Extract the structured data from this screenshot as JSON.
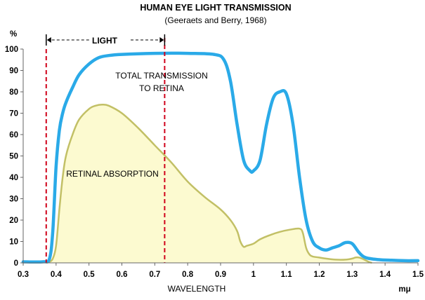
{
  "chart_data": {
    "type": "area",
    "title": "HUMAN EYE LIGHT TRANSMISSION",
    "subtitle": "(Geeraets and Berry, 1968)",
    "xlabel": "WAVELENGTH",
    "x_unit": "mμ",
    "ylabel": "%",
    "xlim": [
      0.3,
      1.5
    ],
    "ylim": [
      0,
      100
    ],
    "x_ticks": [
      "0.3",
      "0.4",
      "0.5",
      "0.6",
      "0.7",
      "0.8",
      "0.9",
      "1",
      "1.1",
      "1.2",
      "1.3",
      "1.4",
      "1.5"
    ],
    "y_ticks": [
      "0",
      "10",
      "20",
      "30",
      "40",
      "50",
      "60",
      "70",
      "80",
      "90",
      "100"
    ],
    "grid": false,
    "light_band": {
      "label": "LIGHT",
      "start": 0.37,
      "end": 0.73
    },
    "series": [
      {
        "name": "TOTAL TRANSMISSION TO RETINA",
        "color": "#2aaae8",
        "x": [
          0.3,
          0.36,
          0.38,
          0.39,
          0.4,
          0.41,
          0.42,
          0.43,
          0.45,
          0.47,
          0.5,
          0.53,
          0.56,
          0.6,
          0.7,
          0.8,
          0.88,
          0.91,
          0.93,
          0.95,
          0.97,
          0.99,
          1.0,
          1.02,
          1.04,
          1.06,
          1.08,
          1.1,
          1.12,
          1.14,
          1.16,
          1.18,
          1.2,
          1.22,
          1.24,
          1.26,
          1.28,
          1.3,
          1.32,
          1.34,
          1.38,
          1.42,
          1.46,
          1.5
        ],
        "y": [
          0.5,
          0.5,
          2,
          15,
          45,
          62,
          70,
          75,
          82,
          88,
          93,
          96,
          97,
          97.5,
          98,
          98,
          97.5,
          95,
          85,
          65,
          48,
          43,
          43,
          48,
          65,
          77,
          80,
          79,
          65,
          40,
          20,
          10,
          7,
          6,
          7,
          8,
          9.5,
          9,
          5,
          2.5,
          1.5,
          1.2,
          1,
          1
        ]
      },
      {
        "name": "RETINAL ABSORPTION",
        "color": "#c2c066",
        "fill": "#fcfad0",
        "x": [
          0.37,
          0.38,
          0.39,
          0.4,
          0.41,
          0.42,
          0.43,
          0.45,
          0.47,
          0.5,
          0.52,
          0.54,
          0.56,
          0.6,
          0.65,
          0.7,
          0.75,
          0.8,
          0.85,
          0.9,
          0.93,
          0.95,
          0.96,
          0.97,
          0.98,
          1.0,
          1.02,
          1.05,
          1.08,
          1.11,
          1.14,
          1.15,
          1.16,
          1.17,
          1.18,
          1.2,
          1.22,
          1.25,
          1.28,
          1.3,
          1.31,
          1.32,
          1.33,
          1.35,
          1.36
        ],
        "y": [
          0,
          0.5,
          2,
          8,
          25,
          40,
          50,
          60,
          67,
          72,
          73.5,
          74,
          73.5,
          70,
          63,
          55,
          47,
          38,
          31,
          25,
          20,
          15,
          10,
          7.5,
          8,
          9,
          11,
          13,
          14.5,
          15.5,
          16,
          14,
          7,
          4,
          3,
          2.5,
          2,
          1.5,
          1.5,
          2,
          2.5,
          2.5,
          2,
          0.5,
          0
        ]
      }
    ],
    "annotations": [
      {
        "text_lines": [
          "TOTAL TRANSMISSION",
          "TO RETINA"
        ],
        "target": "TOTAL TRANSMISSION TO RETINA"
      },
      {
        "text_lines": [
          "RETINAL ABSORPTION"
        ],
        "target": "RETINAL ABSORPTION"
      }
    ]
  }
}
